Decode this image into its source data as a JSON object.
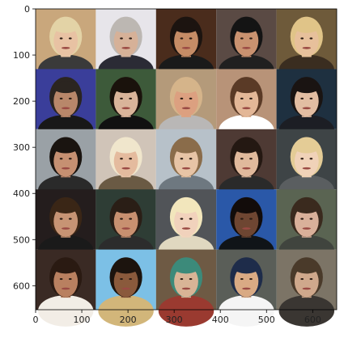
{
  "figure": {
    "x_ticks": [
      "0",
      "100",
      "200",
      "300",
      "400",
      "500",
      "600"
    ],
    "y_ticks": [
      "0",
      "100",
      "200",
      "300",
      "400",
      "500",
      "600"
    ],
    "grid_rows": 5,
    "grid_cols": 5,
    "tiles": [
      {
        "bg": "#c9a77c",
        "hair": "#e3d3a6",
        "skin": "#e8c2a3",
        "cloth": "#3a3a3a",
        "subject": "woman, short blonde hair"
      },
      {
        "bg": "#e7e5ea",
        "hair": "#bcb7b2",
        "skin": "#d6b198",
        "cloth": "#2b2b35",
        "subject": "older man, grey hair"
      },
      {
        "bg": "#4a2c1c",
        "hair": "#1c1410",
        "skin": "#c58c66",
        "cloth": "#1a1a1a",
        "subject": "man, short dark hair"
      },
      {
        "bg": "#5a4a44",
        "hair": "#141414",
        "skin": "#c99270",
        "cloth": "#202020",
        "subject": "man, dark hair"
      },
      {
        "bg": "#6e5a3a",
        "hair": "#e0c488",
        "skin": "#e7c09b",
        "cloth": "#3a2d20",
        "subject": "woman, blonde hair"
      },
      {
        "bg": "#3a3e9a",
        "hair": "#2b2520",
        "skin": "#b8876a",
        "cloth": "#181818",
        "subject": "man, glasses, suit"
      },
      {
        "bg": "#3d5a3a",
        "hair": "#1a120c",
        "skin": "#d9b49a",
        "cloth": "#111111",
        "subject": "man, long dark hair"
      },
      {
        "bg": "#b49a7a",
        "hair": "#d5b48a",
        "skin": "#dca080",
        "cloth": "#b9b7b6",
        "subject": "man, light hair"
      },
      {
        "bg": "#b89378",
        "hair": "#5a3a26",
        "skin": "#e3b797",
        "cloth": "#ffffff",
        "subject": "woman, brown hair"
      },
      {
        "bg": "#1e3040",
        "hair": "#1a1412",
        "skin": "#e2bda2",
        "cloth": "#1c1e24",
        "subject": "man, dark hair"
      },
      {
        "bg": "#9aa1a6",
        "hair": "#1a1410",
        "skin": "#c69072",
        "cloth": "#2a2a2a",
        "subject": "man, dark hair"
      },
      {
        "bg": "#d0c4b8",
        "hair": "#f0e6cc",
        "skin": "#e4bb9e",
        "cloth": "#6a5a44",
        "subject": "man, spiky blond hair"
      },
      {
        "bg": "#b7c1c9",
        "hair": "#8a6c4a",
        "skin": "#e7c4a6",
        "cloth": "#6e7880",
        "subject": "young man"
      },
      {
        "bg": "#4e3a34",
        "hair": "#241812",
        "skin": "#e0b99c",
        "cloth": "#2a2a2a",
        "subject": "woman, dark hair"
      },
      {
        "bg": "#3e4446",
        "hair": "#e4cc96",
        "skin": "#f0d2b8",
        "cloth": "#5a5e60",
        "subject": "woman, blonde hair"
      },
      {
        "bg": "#241d1d",
        "hair": "#3a2616",
        "skin": "#c79474",
        "cloth": "#1a1a1a",
        "subject": "woman, long dark hair"
      },
      {
        "bg": "#2e3d35",
        "hair": "#2a1e16",
        "skin": "#c89070",
        "cloth": "#2c2c2c",
        "subject": "man, dark hair"
      },
      {
        "bg": "#515458",
        "hair": "#f2e6bc",
        "skin": "#f1d2bc",
        "cloth": "#e0d8c0",
        "subject": "woman, platinum blonde"
      },
      {
        "bg": "#2a58a8",
        "hair": "#120c0a",
        "skin": "#6e4632",
        "cloth": "#101418",
        "subject": "woman, dark hair"
      },
      {
        "bg": "#5a6452",
        "hair": "#3a2a1e",
        "skin": "#d9b09a",
        "cloth": "#40443e",
        "subject": "woman, brown hair"
      },
      {
        "bg": "#3a2a24",
        "hair": "#2a1a12",
        "skin": "#b98060",
        "cloth": "#f2ede6",
        "subject": "woman, smiling"
      },
      {
        "bg": "#7cc0e6",
        "hair": "#1c140e",
        "skin": "#8a5a3c",
        "cloth": "#d2b67a",
        "subject": "man, beard"
      },
      {
        "bg": "#6e5a44",
        "hair": "#3c8a7a",
        "skin": "#d8b496",
        "cloth": "#9a3a30",
        "subject": "woman, headscarf"
      },
      {
        "bg": "#5a5e58",
        "hair": "#1e2c4a",
        "skin": "#d9aa84",
        "cloth": "#f5f5f5",
        "subject": "woman, cap"
      },
      {
        "bg": "#7c7466",
        "hair": "#4a3a2a",
        "skin": "#cfa88c",
        "cloth": "#3a3632",
        "subject": "woman, brown hair"
      }
    ]
  }
}
